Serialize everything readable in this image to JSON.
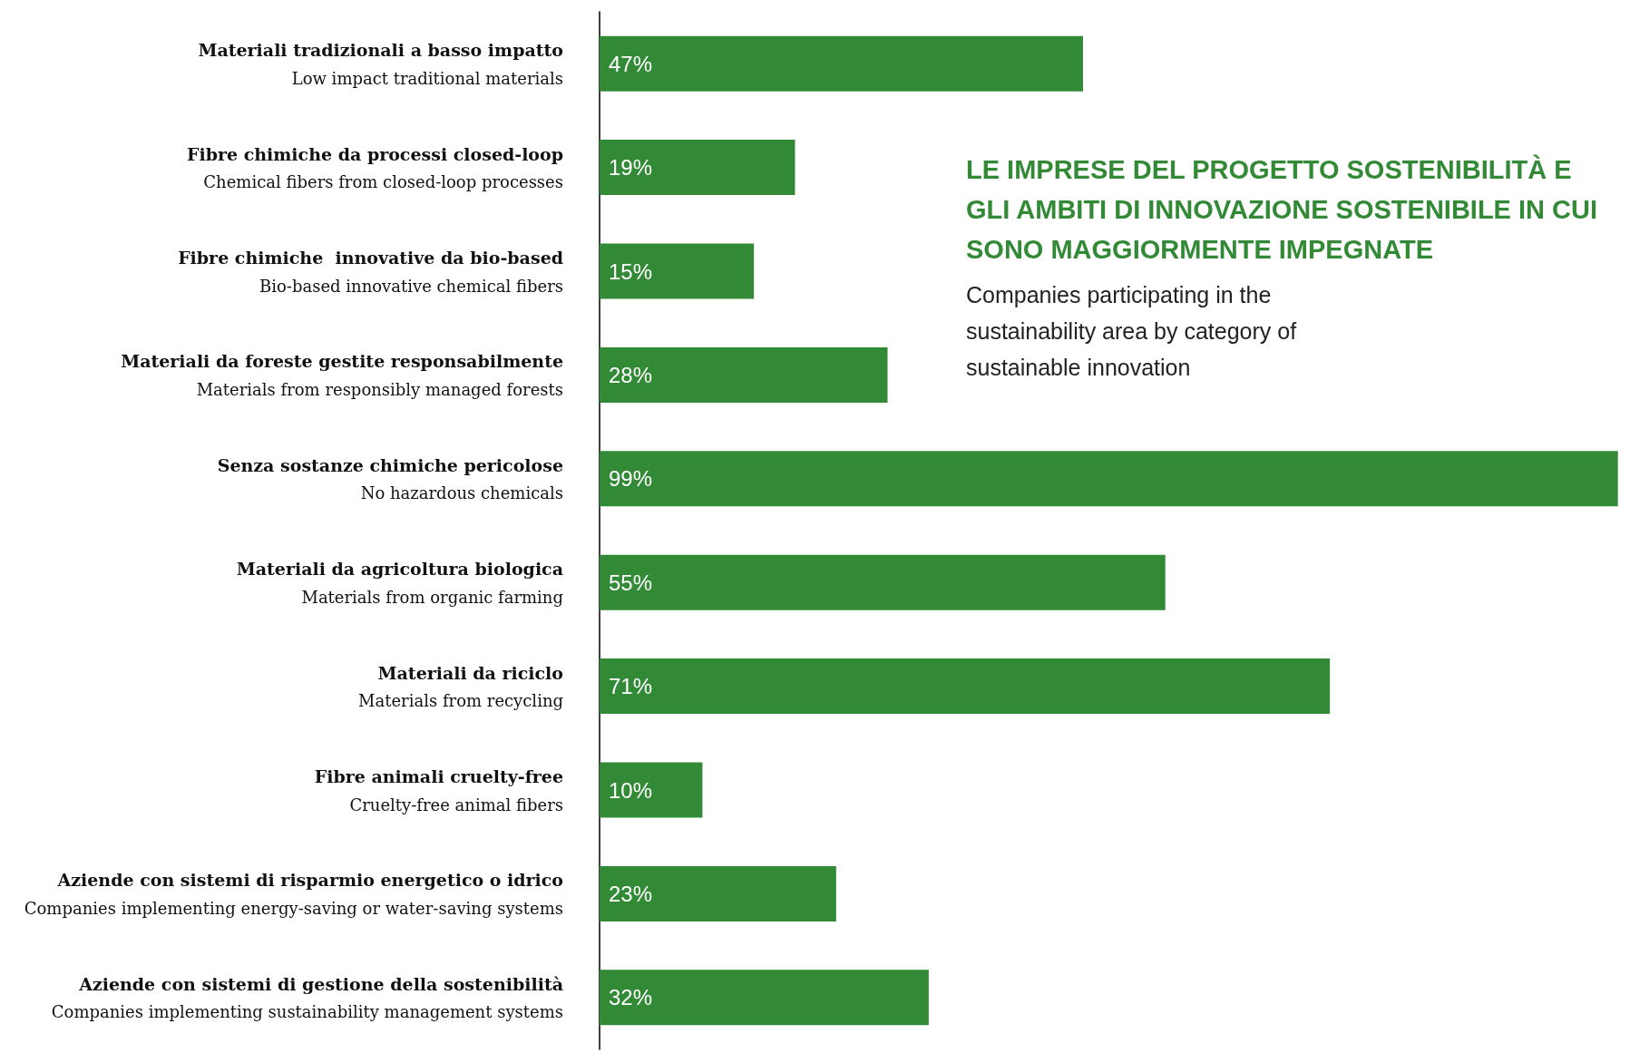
{
  "chart_data": {
    "type": "bar",
    "orientation": "horizontal",
    "title": "LE IMPRESE DEL PROGETTO SOSTENIBILITÀ E GLI AMBITI DI INNOVAZIONE SOSTENIBILE IN CUI SONO MAGGIORMENTE IMPEGNATE",
    "subtitle": "Companies participating in the sustainability area by category of sustainable innovation",
    "categories": [
      "Materiali tradizionali a basso impatto\nLow impact traditional materials",
      "Fibre chimiche da processi closed-loop\nChemical fibers from closed-loop processes",
      "Fibre chimiche  innovative da bio-based\nBio-based innovative chemical fibers",
      "Materiali da foreste gestite responsabilmente\nMaterials from responsibly managed forests",
      "Senza sostanze chimiche pericolose\nNo hazardous chemicals",
      "Materiali da agricoltura biologica\nMaterials from organic farming",
      "Materiali da riciclo\nMaterials from recycling",
      "Fibre animali cruelty-free\nCruelty-free animal fibers",
      "Aziende con sistemi di risparmio energetico o idrico\nCompanies implementing energy-saving or water-saving systems",
      "Aziende con sistemi di gestione della sostenibilità\nCompanies implementing sustainability management systems"
    ],
    "values": [
      47,
      19,
      15,
      28,
      99,
      55,
      71,
      10,
      23,
      32
    ],
    "value_labels": [
      "47%",
      "19%",
      "15%",
      "28%",
      "99%",
      "55%",
      "71%",
      "10%",
      "23%",
      "32%"
    ],
    "color": "#338a36"
  }
}
